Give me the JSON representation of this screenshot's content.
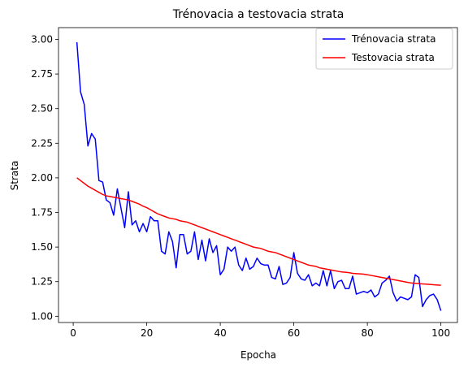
{
  "chart_data": {
    "type": "line",
    "title": "Trénovacia a testovacia strata",
    "xlabel": "Epocha",
    "ylabel": "Strata",
    "xlim": [
      -4,
      104.5
    ],
    "ylim": [
      0.955,
      3.085
    ],
    "x_ticks": [
      0,
      20,
      40,
      60,
      80,
      100
    ],
    "x_tick_labels": [
      "0",
      "20",
      "40",
      "60",
      "80",
      "100"
    ],
    "y_ticks": [
      1.0,
      1.25,
      1.5,
      1.75,
      2.0,
      2.25,
      2.5,
      2.75,
      3.0
    ],
    "y_tick_labels": [
      "1.00",
      "1.25",
      "1.50",
      "1.75",
      "2.00",
      "2.25",
      "2.50",
      "2.75",
      "3.00"
    ],
    "grid": false,
    "legend_position": "top-right",
    "x": [
      1,
      2,
      3,
      4,
      5,
      6,
      7,
      8,
      9,
      10,
      11,
      12,
      13,
      14,
      15,
      16,
      17,
      18,
      19,
      20,
      21,
      22,
      23,
      24,
      25,
      26,
      27,
      28,
      29,
      30,
      31,
      32,
      33,
      34,
      35,
      36,
      37,
      38,
      39,
      40,
      41,
      42,
      43,
      44,
      45,
      46,
      47,
      48,
      49,
      50,
      51,
      52,
      53,
      54,
      55,
      56,
      57,
      58,
      59,
      60,
      61,
      62,
      63,
      64,
      65,
      66,
      67,
      68,
      69,
      70,
      71,
      72,
      73,
      74,
      75,
      76,
      77,
      78,
      79,
      80,
      81,
      82,
      83,
      84,
      85,
      86,
      87,
      88,
      89,
      90,
      91,
      92,
      93,
      94,
      95,
      96,
      97,
      98,
      99,
      100
    ],
    "series": [
      {
        "name": "Trénovacia strata",
        "color": "#0000ff",
        "values": [
          2.98,
          2.62,
          2.53,
          2.23,
          2.32,
          2.28,
          1.98,
          1.97,
          1.84,
          1.82,
          1.73,
          1.92,
          1.78,
          1.64,
          1.9,
          1.66,
          1.69,
          1.61,
          1.67,
          1.61,
          1.72,
          1.69,
          1.69,
          1.47,
          1.45,
          1.61,
          1.54,
          1.35,
          1.59,
          1.59,
          1.45,
          1.47,
          1.61,
          1.41,
          1.55,
          1.4,
          1.56,
          1.46,
          1.51,
          1.3,
          1.34,
          1.5,
          1.47,
          1.5,
          1.37,
          1.33,
          1.42,
          1.34,
          1.36,
          1.42,
          1.38,
          1.37,
          1.37,
          1.28,
          1.27,
          1.36,
          1.23,
          1.24,
          1.28,
          1.46,
          1.31,
          1.27,
          1.26,
          1.3,
          1.22,
          1.24,
          1.22,
          1.33,
          1.22,
          1.33,
          1.2,
          1.25,
          1.26,
          1.2,
          1.2,
          1.29,
          1.16,
          1.17,
          1.18,
          1.17,
          1.19,
          1.14,
          1.16,
          1.24,
          1.26,
          1.29,
          1.17,
          1.11,
          1.14,
          1.13,
          1.12,
          1.14,
          1.3,
          1.28,
          1.07,
          1.12,
          1.15,
          1.16,
          1.12,
          1.04
        ]
      },
      {
        "name": "Testovacia strata",
        "color": "#ff0000",
        "values": [
          2.0,
          1.98,
          1.96,
          1.94,
          1.925,
          1.91,
          1.895,
          1.88,
          1.87,
          1.865,
          1.86,
          1.855,
          1.85,
          1.845,
          1.84,
          1.83,
          1.82,
          1.81,
          1.795,
          1.785,
          1.77,
          1.755,
          1.74,
          1.73,
          1.72,
          1.71,
          1.705,
          1.7,
          1.69,
          1.685,
          1.68,
          1.67,
          1.66,
          1.65,
          1.64,
          1.63,
          1.62,
          1.61,
          1.6,
          1.59,
          1.58,
          1.57,
          1.56,
          1.55,
          1.54,
          1.53,
          1.52,
          1.51,
          1.5,
          1.495,
          1.49,
          1.48,
          1.47,
          1.465,
          1.46,
          1.45,
          1.44,
          1.43,
          1.42,
          1.41,
          1.4,
          1.39,
          1.38,
          1.37,
          1.365,
          1.36,
          1.35,
          1.345,
          1.34,
          1.335,
          1.33,
          1.325,
          1.32,
          1.318,
          1.315,
          1.31,
          1.308,
          1.306,
          1.304,
          1.3,
          1.295,
          1.29,
          1.285,
          1.28,
          1.275,
          1.27,
          1.265,
          1.26,
          1.255,
          1.25,
          1.245,
          1.24,
          1.238,
          1.236,
          1.234,
          1.232,
          1.23,
          1.228,
          1.226,
          1.224
        ]
      }
    ]
  }
}
